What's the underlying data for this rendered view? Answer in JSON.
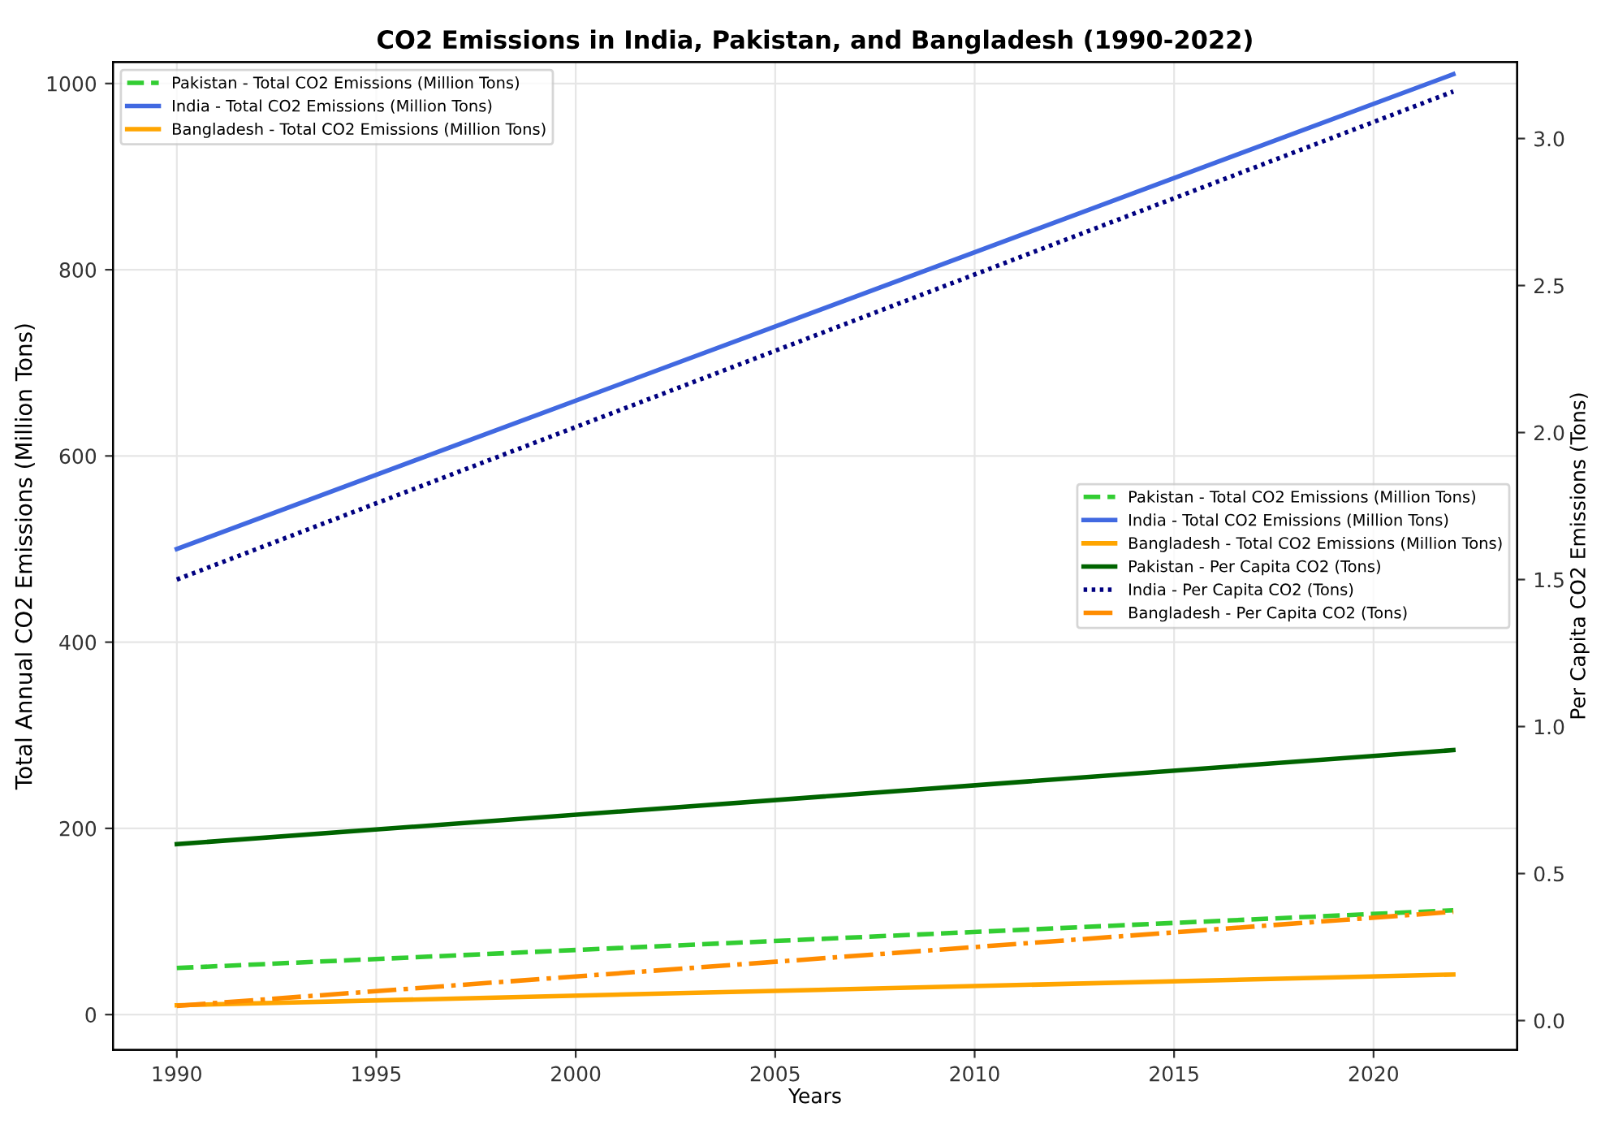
{
  "chart_data": {
    "type": "line",
    "title": "CO2 Emissions in India, Pakistan, and Bangladesh (1990-2022)",
    "xlabel": "Years",
    "ylabel": "Total Annual CO2 Emissions (Million Tons)",
    "y2label": "Per Capita CO2 Emissions (Tons)",
    "x": [
      1990,
      2022
    ],
    "series": [
      {
        "name": "Pakistan - Total CO2 Emissions (Million Tons)",
        "color": "#32cd32",
        "line_style": "dashed",
        "values": [
          50,
          112
        ]
      },
      {
        "name": "India - Total CO2 Emissions (Million Tons)",
        "color": "#4169e1",
        "line_style": "solid",
        "values": [
          500,
          1010
        ]
      },
      {
        "name": "Bangladesh - Total CO2 Emissions (Million Tons)",
        "color": "#ffa500",
        "line_style": "solid",
        "values": [
          10,
          43
        ]
      },
      {
        "name": "Pakistan - Per Capita CO2 (Tons)",
        "color": "#006400",
        "line_style": "solid",
        "axis": "y2",
        "values": [
          0.6,
          0.92
        ]
      },
      {
        "name": "India - Per Capita CO2 (Tons)",
        "color": "#000080",
        "line_style": "dotted",
        "axis": "y2",
        "values": [
          1.5,
          3.16
        ]
      },
      {
        "name": "Bangladesh - Per Capita CO2 (Tons)",
        "color": "#ff8c00",
        "line_style": "dashdot",
        "axis": "y2",
        "values": [
          0.05,
          0.37
        ]
      }
    ],
    "xlim": [
      1988.4,
      2023.6
    ],
    "xticks": [
      1990,
      1995,
      2000,
      2005,
      2010,
      2015,
      2020
    ],
    "ylim": [
      -38,
      1023
    ],
    "yticks": [
      0,
      200,
      400,
      600,
      800,
      1000
    ],
    "y2lim": [
      -0.1,
      3.26
    ],
    "y2ticks": [
      {
        "value": 0,
        "label": "0.0"
      },
      0.5,
      {
        "value": 1,
        "label": "1.0"
      },
      1.5,
      {
        "value": 2,
        "label": "2.0"
      },
      2.5,
      {
        "value": 3,
        "label": "3.0"
      }
    ],
    "grid": true,
    "legend": [
      "top left",
      "right"
    ]
  }
}
